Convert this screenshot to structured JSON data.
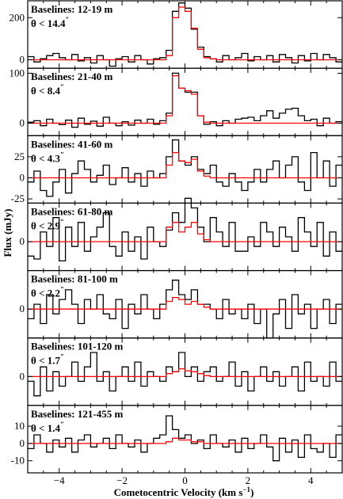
{
  "figure": {
    "xlabel": "Cometocentric Velocity (km s",
    "xlabel_sup": "−1",
    "xlabel_close": ")",
    "ylabel": "Flux (mJy)"
  },
  "chart_data": [
    {
      "type": "line",
      "baselines": "Baselines: 12-19 m",
      "theta": "θ < 14.4",
      "theta_mark": "″",
      "xlim": [
        -5,
        5
      ],
      "ylim": [
        -40,
        280
      ],
      "yticks": [
        0,
        200
      ],
      "x": [
        -5.0,
        -4.8,
        -4.6,
        -4.4,
        -4.2,
        -4.0,
        -3.8,
        -3.6,
        -3.4,
        -3.2,
        -3.0,
        -2.8,
        -2.6,
        -2.4,
        -2.2,
        -2.0,
        -1.8,
        -1.6,
        -1.4,
        -1.2,
        -1.0,
        -0.8,
        -0.6,
        -0.4,
        -0.2,
        0.0,
        0.2,
        0.4,
        0.6,
        0.8,
        1.0,
        1.2,
        1.4,
        1.6,
        1.8,
        2.0,
        2.2,
        2.4,
        2.6,
        2.8,
        3.0,
        3.2,
        3.4,
        3.6,
        3.8,
        4.0,
        4.2,
        4.4,
        4.6,
        4.8
      ],
      "series": [
        {
          "color": "#000000",
          "values": [
            15,
            -10,
            5,
            20,
            30,
            10,
            0,
            25,
            -5,
            10,
            -15,
            20,
            0,
            -30,
            5,
            15,
            -10,
            20,
            0,
            -20,
            5,
            10,
            45,
            230,
            270,
            245,
            145,
            60,
            15,
            5,
            -10,
            20,
            0,
            10,
            30,
            -5,
            15,
            0,
            20,
            -10,
            25,
            10,
            -15,
            20,
            -5,
            30,
            0,
            25,
            10,
            -10
          ]
        },
        {
          "color": "#ff0000",
          "values": [
            0,
            0,
            0,
            0,
            0,
            0,
            0,
            0,
            0,
            0,
            0,
            0,
            0,
            0,
            0,
            0,
            0,
            0,
            0,
            0,
            0,
            0,
            20,
            200,
            250,
            230,
            150,
            50,
            10,
            5,
            0,
            0,
            0,
            0,
            0,
            0,
            0,
            0,
            0,
            0,
            0,
            0,
            0,
            0,
            0,
            0,
            0,
            0,
            0,
            0
          ]
        }
      ]
    },
    {
      "type": "line",
      "baselines": "Baselines: 21-40 m",
      "theta": "θ < 8.4",
      "theta_mark": "″",
      "xlim": [
        -5,
        5
      ],
      "ylim": [
        -25,
        110
      ],
      "yticks": [
        0,
        100
      ],
      "x": [
        -5.0,
        -4.8,
        -4.6,
        -4.4,
        -4.2,
        -4.0,
        -3.8,
        -3.6,
        -3.4,
        -3.2,
        -3.0,
        -2.8,
        -2.6,
        -2.4,
        -2.2,
        -2.0,
        -1.8,
        -1.6,
        -1.4,
        -1.2,
        -1.0,
        -0.8,
        -0.6,
        -0.4,
        -0.2,
        0.0,
        0.2,
        0.4,
        0.6,
        0.8,
        1.0,
        1.2,
        1.4,
        1.6,
        1.8,
        2.0,
        2.2,
        2.4,
        2.6,
        2.8,
        3.0,
        3.2,
        3.4,
        3.6,
        3.8,
        4.0,
        4.2,
        4.4,
        4.6,
        4.8
      ],
      "series": [
        {
          "color": "#000000",
          "values": [
            2,
            5,
            -5,
            8,
            0,
            -3,
            6,
            -8,
            10,
            -2,
            4,
            -6,
            12,
            0,
            -5,
            3,
            -4,
            6,
            0,
            8,
            -2,
            5,
            20,
            100,
            70,
            62,
            62,
            15,
            -2,
            3,
            -5,
            5,
            0,
            8,
            10,
            12,
            5,
            15,
            25,
            10,
            20,
            28,
            30,
            15,
            5,
            8,
            -5,
            10,
            0,
            3
          ]
        },
        {
          "color": "#ff0000",
          "values": [
            0,
            0,
            0,
            0,
            0,
            0,
            0,
            0,
            0,
            0,
            0,
            0,
            0,
            0,
            0,
            0,
            0,
            0,
            0,
            0,
            0,
            0,
            15,
            95,
            70,
            65,
            58,
            15,
            2,
            0,
            0,
            0,
            0,
            0,
            0,
            0,
            0,
            0,
            0,
            0,
            0,
            0,
            0,
            0,
            0,
            0,
            0,
            0,
            0,
            0
          ]
        }
      ]
    },
    {
      "type": "line",
      "baselines": "Baselines: 41-60 m",
      "theta": "θ < 4.3",
      "theta_mark": "″",
      "xlim": [
        -5,
        5
      ],
      "ylim": [
        -30,
        50
      ],
      "yticks": [
        -25,
        0,
        25
      ],
      "x": [
        -5.0,
        -4.8,
        -4.6,
        -4.4,
        -4.2,
        -4.0,
        -3.8,
        -3.6,
        -3.4,
        -3.2,
        -3.0,
        -2.8,
        -2.6,
        -2.4,
        -2.2,
        -2.0,
        -1.8,
        -1.6,
        -1.4,
        -1.2,
        -1.0,
        -0.8,
        -0.6,
        -0.4,
        -0.2,
        0.0,
        0.2,
        0.4,
        0.6,
        0.8,
        1.0,
        1.2,
        1.4,
        1.6,
        1.8,
        2.0,
        2.2,
        2.4,
        2.6,
        2.8,
        3.0,
        3.2,
        3.4,
        3.6,
        3.8,
        4.0,
        4.2,
        4.4,
        4.6,
        4.8
      ],
      "series": [
        {
          "color": "#000000",
          "values": [
            -5,
            8,
            -15,
            -22,
            -5,
            10,
            -18,
            5,
            20,
            10,
            -5,
            3,
            15,
            -8,
            0,
            12,
            -5,
            5,
            -10,
            8,
            0,
            5,
            25,
            45,
            20,
            15,
            25,
            10,
            5,
            15,
            -5,
            -10,
            5,
            -5,
            -15,
            -5,
            10,
            -5,
            10,
            20,
            0,
            15,
            25,
            -5,
            -15,
            30,
            0,
            20,
            -10,
            15
          ]
        },
        {
          "color": "#ff0000",
          "values": [
            0,
            0,
            0,
            0,
            0,
            0,
            0,
            0,
            0,
            0,
            0,
            0,
            0,
            0,
            0,
            0,
            0,
            0,
            0,
            0,
            0,
            0,
            15,
            30,
            20,
            18,
            22,
            8,
            2,
            0,
            0,
            0,
            0,
            0,
            0,
            0,
            0,
            0,
            0,
            0,
            0,
            0,
            0,
            0,
            0,
            0,
            0,
            0,
            0,
            0
          ]
        }
      ]
    },
    {
      "type": "line",
      "baselines": "Baselines: 61-80 m",
      "theta": "θ < 2.9",
      "theta_mark": "″",
      "xlim": [
        -5,
        5
      ],
      "ylim": [
        -30,
        40
      ],
      "yticks": [
        0
      ],
      "x": [
        -5.0,
        -4.8,
        -4.6,
        -4.4,
        -4.2,
        -4.0,
        -3.8,
        -3.6,
        -3.4,
        -3.2,
        -3.0,
        -2.8,
        -2.6,
        -2.4,
        -2.2,
        -2.0,
        -1.8,
        -1.6,
        -1.4,
        -1.2,
        -1.0,
        -0.8,
        -0.6,
        -0.4,
        -0.2,
        0.0,
        0.2,
        0.4,
        0.6,
        0.8,
        1.0,
        1.2,
        1.4,
        1.6,
        1.8,
        2.0,
        2.2,
        2.4,
        2.6,
        2.8,
        3.0,
        3.2,
        3.4,
        3.6,
        3.8,
        4.0,
        4.2,
        4.4,
        4.6,
        4.8
      ],
      "series": [
        {
          "color": "#000000",
          "values": [
            -15,
            -18,
            10,
            -5,
            25,
            -20,
            15,
            -5,
            20,
            -10,
            5,
            15,
            30,
            -5,
            -15,
            10,
            -10,
            5,
            -18,
            15,
            0,
            -5,
            12,
            30,
            20,
            45,
            35,
            15,
            0,
            25,
            10,
            -5,
            20,
            -10,
            -10,
            5,
            -5,
            20,
            10,
            -5,
            15,
            5,
            -10,
            25,
            10,
            -5,
            20,
            -15,
            10,
            -10
          ]
        },
        {
          "color": "#ff0000",
          "values": [
            0,
            0,
            0,
            0,
            0,
            0,
            0,
            0,
            0,
            0,
            0,
            0,
            0,
            0,
            0,
            0,
            0,
            0,
            0,
            0,
            0,
            0,
            15,
            20,
            10,
            15,
            20,
            8,
            2,
            0,
            0,
            0,
            0,
            0,
            0,
            0,
            0,
            0,
            0,
            0,
            0,
            0,
            0,
            0,
            0,
            0,
            0,
            0,
            0,
            0
          ]
        }
      ]
    },
    {
      "type": "line",
      "baselines": "Baselines: 81-100 m",
      "theta": "θ < 2.2",
      "theta_mark": "″",
      "xlim": [
        -5,
        5
      ],
      "ylim": [
        -30,
        40
      ],
      "yticks": [
        0
      ],
      "x": [
        -5.0,
        -4.8,
        -4.6,
        -4.4,
        -4.2,
        -4.0,
        -3.8,
        -3.6,
        -3.4,
        -3.2,
        -3.0,
        -2.8,
        -2.6,
        -2.4,
        -2.2,
        -2.0,
        -1.8,
        -1.6,
        -1.4,
        -1.2,
        -1.0,
        -0.8,
        -0.6,
        -0.4,
        -0.2,
        0.0,
        0.2,
        0.4,
        0.6,
        0.8,
        1.0,
        1.2,
        1.4,
        1.6,
        1.8,
        2.0,
        2.2,
        2.4,
        2.6,
        2.8,
        3.0,
        3.2,
        3.4,
        3.6,
        3.8,
        4.0,
        4.2,
        4.4,
        4.6,
        4.8
      ],
      "series": [
        {
          "color": "#000000",
          "values": [
            -10,
            5,
            -15,
            15,
            -5,
            10,
            20,
            5,
            -15,
            10,
            0,
            15,
            -5,
            -10,
            10,
            -20,
            5,
            -5,
            15,
            0,
            -10,
            5,
            20,
            30,
            15,
            10,
            20,
            5,
            5,
            0,
            -10,
            10,
            -5,
            0,
            -10,
            5,
            -15,
            0,
            -30,
            -5,
            10,
            -20,
            15,
            -5,
            5,
            -20,
            0,
            10,
            -15,
            5
          ]
        },
        {
          "color": "#ff0000",
          "values": [
            0,
            0,
            0,
            0,
            0,
            0,
            0,
            0,
            0,
            0,
            0,
            0,
            0,
            0,
            0,
            0,
            0,
            0,
            0,
            0,
            0,
            0,
            8,
            12,
            10,
            5,
            8,
            5,
            2,
            0,
            0,
            0,
            0,
            0,
            0,
            0,
            0,
            0,
            0,
            0,
            0,
            0,
            0,
            0,
            0,
            0,
            0,
            0,
            0,
            0
          ]
        }
      ]
    },
    {
      "type": "line",
      "baselines": "Baselines: 101-120 m",
      "theta": "θ < 1.7",
      "theta_mark": "″",
      "xlim": [
        -5,
        5
      ],
      "ylim": [
        -30,
        40
      ],
      "yticks": [
        0
      ],
      "x": [
        -5.0,
        -4.8,
        -4.6,
        -4.4,
        -4.2,
        -4.0,
        -3.8,
        -3.6,
        -3.4,
        -3.2,
        -3.0,
        -2.8,
        -2.6,
        -2.4,
        -2.2,
        -2.0,
        -1.8,
        -1.6,
        -1.4,
        -1.2,
        -1.0,
        -0.8,
        -0.6,
        -0.4,
        -0.2,
        0.0,
        0.2,
        0.4,
        0.6,
        0.8,
        1.0,
        1.2,
        1.4,
        1.6,
        1.8,
        2.0,
        2.2,
        2.4,
        2.6,
        2.8,
        3.0,
        3.2,
        3.4,
        3.6,
        3.8,
        4.0,
        4.2,
        4.4,
        4.6,
        4.8
      ],
      "series": [
        {
          "color": "#000000",
          "values": [
            -5,
            -20,
            10,
            -15,
            5,
            -10,
            0,
            15,
            -5,
            10,
            25,
            -5,
            5,
            -15,
            0,
            10,
            -5,
            15,
            -10,
            5,
            0,
            -5,
            10,
            5,
            25,
            0,
            10,
            -5,
            5,
            10,
            -5,
            0,
            15,
            -10,
            5,
            -15,
            0,
            10,
            -5,
            5,
            -10,
            0,
            10,
            -15,
            15,
            -5,
            0,
            -10,
            15,
            -5
          ]
        },
        {
          "color": "#ff0000",
          "values": [
            0,
            0,
            0,
            0,
            0,
            0,
            0,
            0,
            0,
            0,
            0,
            0,
            0,
            0,
            0,
            0,
            0,
            0,
            0,
            0,
            0,
            0,
            3,
            5,
            8,
            6,
            5,
            3,
            1,
            0,
            0,
            0,
            0,
            0,
            0,
            0,
            0,
            0,
            0,
            0,
            0,
            0,
            0,
            0,
            0,
            0,
            0,
            0,
            0,
            0
          ]
        }
      ]
    },
    {
      "type": "line",
      "baselines": "Baselines: 121-455 m",
      "theta": "θ < 1.4",
      "theta_mark": "″",
      "xlim": [
        -5,
        5
      ],
      "ylim": [
        -17,
        22
      ],
      "yticks": [
        -10,
        0,
        10
      ],
      "x": [
        -5.0,
        -4.8,
        -4.6,
        -4.4,
        -4.2,
        -4.0,
        -3.8,
        -3.6,
        -3.4,
        -3.2,
        -3.0,
        -2.8,
        -2.6,
        -2.4,
        -2.2,
        -2.0,
        -1.8,
        -1.6,
        -1.4,
        -1.2,
        -1.0,
        -0.8,
        -0.6,
        -0.4,
        -0.2,
        0.0,
        0.2,
        0.4,
        0.6,
        0.8,
        1.0,
        1.2,
        1.4,
        1.6,
        1.8,
        2.0,
        2.2,
        2.4,
        2.6,
        2.8,
        3.0,
        3.2,
        3.4,
        3.6,
        3.8,
        4.0,
        4.2,
        4.4,
        4.6,
        4.8
      ],
      "series": [
        {
          "color": "#000000",
          "values": [
            -3,
            5,
            0,
            -5,
            2,
            -2,
            3,
            -5,
            2,
            5,
            -2,
            0,
            3,
            -3,
            5,
            0,
            -2,
            2,
            -5,
            0,
            3,
            5,
            16,
            8,
            3,
            5,
            0,
            2,
            -3,
            5,
            0,
            -2,
            2,
            -5,
            3,
            -3,
            0,
            5,
            -2,
            -10,
            3,
            -5,
            2,
            -8,
            5,
            -3,
            -5,
            0,
            -8,
            5
          ]
        },
        {
          "color": "#ff0000",
          "values": [
            0,
            0,
            0,
            0,
            0,
            0,
            0,
            0,
            0,
            0,
            0,
            0,
            0,
            0,
            0,
            0,
            0,
            0,
            0,
            0,
            0,
            0,
            1,
            3,
            2,
            2,
            1,
            1,
            0,
            0,
            0,
            0,
            0,
            0,
            0,
            0,
            0,
            0,
            0,
            0,
            0,
            0,
            0,
            0,
            0,
            0,
            0,
            0,
            0,
            0
          ]
        }
      ]
    }
  ],
  "xticks": [
    -4,
    -2,
    0,
    2,
    4
  ]
}
